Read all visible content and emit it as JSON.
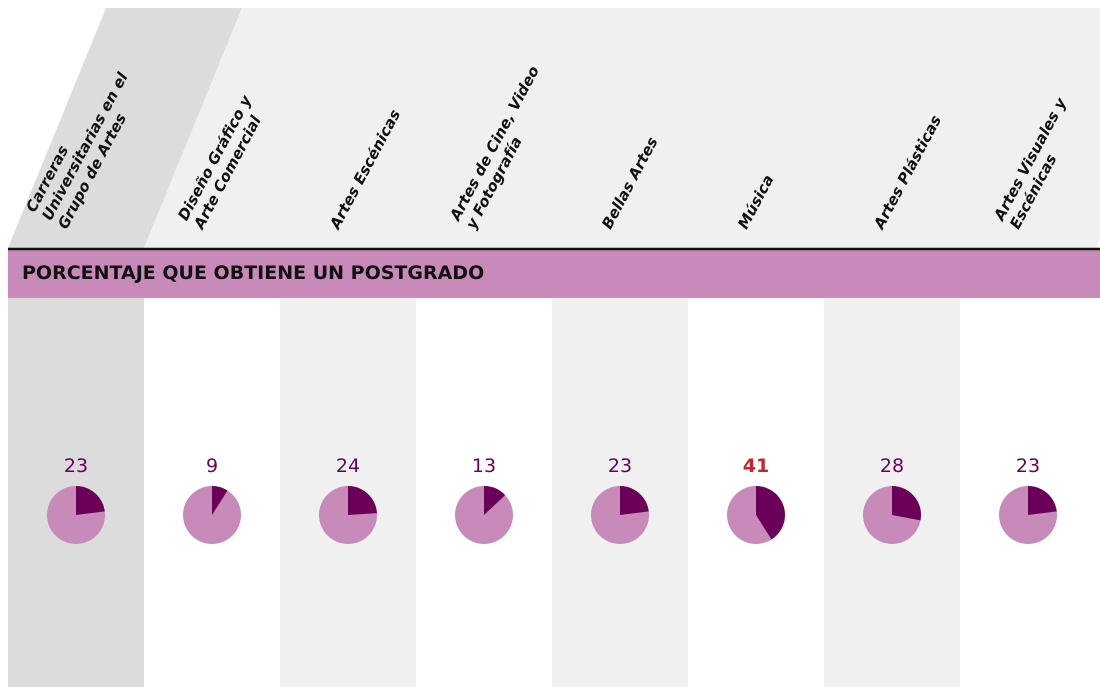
{
  "chart_data": {
    "type": "pie",
    "title": "PORCENTAJE QUE OBTIENE UN POSTGRADO",
    "categories": [
      "Carreras Universitarias en el Grupo de Artes",
      "Diseño Gráfico y Arte Comercial",
      "Artes Escénicas",
      "Artes de Cine, Video y Fotografía",
      "Bellas Artes",
      "Música",
      "Artes Plásticas",
      "Artes Visuales y Escénicas"
    ],
    "values": [
      23,
      9,
      24,
      13,
      23,
      41,
      28,
      23
    ],
    "color": "#6b0058",
    "rest_color": "#c88ab8",
    "label_color": "#6b0058",
    "highlight_index": 5,
    "highlight_color": "#d0202a"
  }
}
